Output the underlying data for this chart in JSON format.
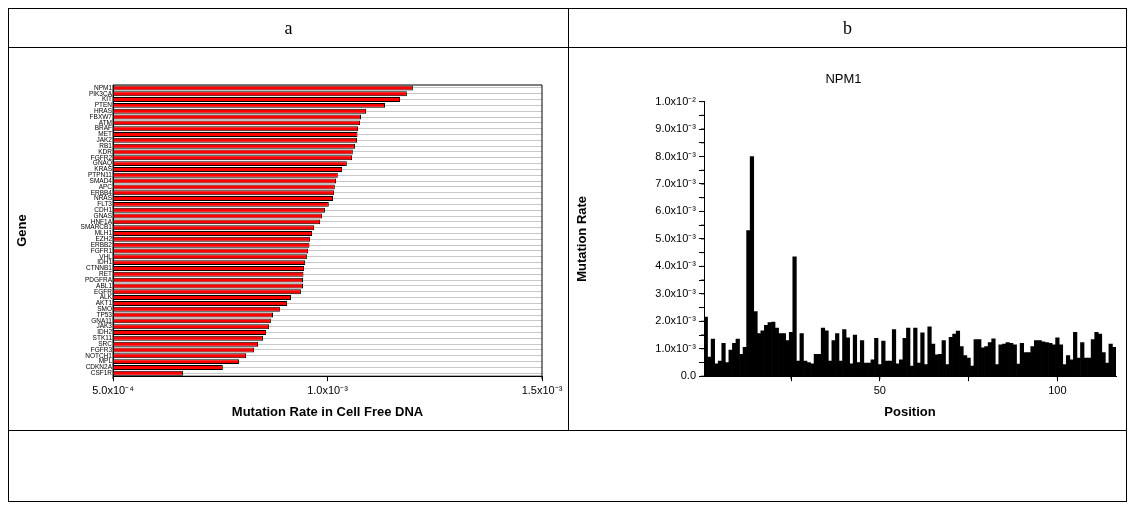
{
  "chart_data": [
    {
      "type": "bar",
      "orientation": "horizontal",
      "annotations": [
        "a"
      ],
      "xlabel": "Mutation Rate in Cell Free DNA",
      "ylabel": "Gene",
      "grid": "y",
      "color": "#ff0000",
      "categories": [
        "NPM1",
        "PIK3CA",
        "KIT",
        "PTEN",
        "HRAS",
        "FBXW7",
        "ATM",
        "BRAF",
        "MET",
        "JAK2",
        "RB1",
        "KDR",
        "FGFR2",
        "GNAQ",
        "KRAS",
        "PTPN11",
        "SMAD4",
        "APC",
        "ERBB4",
        "NRAS",
        "FLT3",
        "CDH1",
        "GNAS",
        "HNF1A",
        "SMARCB1",
        "MLH1",
        "EZH2",
        "ERBB2",
        "FGFR1",
        "VHL",
        "IDH1",
        "CTNNB1",
        "RET",
        "PDGFRA",
        "ABL1",
        "EGFR",
        "ALK",
        "AKT1",
        "SMO",
        "TP53",
        "GNA11",
        "JAK3",
        "IDH2",
        "STK11",
        "SRC",
        "FGFR3",
        "NOTCH1",
        "MPL",
        "CDKN2A",
        "CSF1R"
      ],
      "values": [
        0.001199,
        0.001185,
        0.001169,
        0.001134,
        0.00109,
        0.001078,
        0.001076,
        0.001071,
        0.00107,
        0.001069,
        0.001064,
        0.001059,
        0.001057,
        0.001045,
        0.001034,
        0.001024,
        0.00102,
        0.001017,
        0.001015,
        0.001013,
        0.001003,
        0.000994,
        0.000987,
        0.000983,
        0.000969,
        0.000964,
        0.000959,
        0.000958,
        0.000955,
        0.000952,
        0.000948,
        0.000945,
        0.000944,
        0.000943,
        0.000943,
        0.000938,
        0.000915,
        0.000906,
        0.000889,
        0.000873,
        0.000868,
        0.000864,
        0.000857,
        0.00085,
        0.000838,
        0.000829,
        0.00081,
        0.000794,
        0.000756,
        0.000663
      ],
      "xlim": [
        0.0005,
        0.0015
      ],
      "xticks": [
        {
          "value": 0.0005,
          "label": "5.0x10⁻⁴"
        },
        {
          "value": 0.001,
          "label": "1.0x10⁻³"
        },
        {
          "value": 0.0015,
          "label": "1.5x10⁻³"
        }
      ]
    },
    {
      "type": "bar",
      "annotations": [
        "b"
      ],
      "title": "NPM1",
      "xlabel": "Position",
      "ylabel": "Mutation Rate",
      "color": "#000000",
      "x": [
        1,
        2,
        3,
        4,
        5,
        6,
        7,
        8,
        9,
        10,
        11,
        12,
        13,
        14,
        15,
        16,
        17,
        18,
        19,
        20,
        21,
        22,
        23,
        24,
        25,
        26,
        27,
        28,
        29,
        30,
        31,
        32,
        33,
        34,
        35,
        36,
        37,
        38,
        39,
        40,
        41,
        42,
        43,
        44,
        45,
        46,
        47,
        48,
        49,
        50,
        51,
        52,
        53,
        54,
        55,
        56,
        57,
        58,
        59,
        60,
        61,
        62,
        63,
        64,
        65,
        66,
        67,
        68,
        69,
        70,
        71,
        72,
        73,
        74,
        75,
        76,
        77,
        78,
        79,
        80,
        81,
        82,
        83,
        84,
        85,
        86,
        87,
        88,
        89,
        90,
        91,
        92,
        93,
        94,
        95,
        96,
        97,
        98,
        99,
        100,
        101,
        102,
        103,
        104,
        105,
        106,
        107,
        108,
        109,
        110,
        111,
        112,
        113,
        114,
        115,
        116
      ],
      "values": [
        0.00215,
        0.0007,
        0.00135,
        0.00045,
        0.00055,
        0.0012,
        0.0005,
        0.00095,
        0.0012,
        0.00135,
        0.0008,
        0.00105,
        0.0053,
        0.008,
        0.00235,
        0.00155,
        0.00165,
        0.00185,
        0.00195,
        0.00197,
        0.00175,
        0.00155,
        0.00155,
        0.0013,
        0.0016,
        0.00435,
        0.00055,
        0.00155,
        0.00055,
        0.0005,
        0.00045,
        0.0008,
        0.0008,
        0.00175,
        0.00165,
        0.00055,
        0.0013,
        0.00155,
        0.00055,
        0.0017,
        0.0014,
        0.00045,
        0.0015,
        0.0005,
        0.0013,
        0.00048,
        0.00048,
        0.0006,
        0.00138,
        0.00042,
        0.00128,
        0.00055,
        0.00055,
        0.0017,
        0.00045,
        0.0006,
        0.00138,
        0.00175,
        0.00037,
        0.00175,
        0.00048,
        0.00158,
        0.00042,
        0.0018,
        0.00117,
        0.00078,
        0.0008,
        0.0013,
        0.00042,
        0.00142,
        0.00153,
        0.00164,
        0.00108,
        0.00075,
        0.00066,
        0.00037,
        0.00133,
        0.00133,
        0.00103,
        0.00108,
        0.00122,
        0.00136,
        0.00042,
        0.00114,
        0.00117,
        0.00122,
        0.0012,
        0.00114,
        0.00044,
        0.0012,
        0.00086,
        0.00086,
        0.00108,
        0.0013,
        0.0013,
        0.00125,
        0.00122,
        0.0012,
        0.00114,
        0.0014,
        0.00114,
        0.00042,
        0.00075,
        0.0006,
        0.0016,
        0.00066,
        0.00122,
        0.00066,
        0.00066,
        0.00133,
        0.0016,
        0.00153,
        0.00086,
        0.00048,
        0.00117,
        0.00105
      ],
      "xlim": [
        0.5,
        116.5
      ],
      "xticks": [
        {
          "value": 25,
          "label": null
        },
        50,
        {
          "value": 75,
          "label": null
        },
        100
      ],
      "ylim": [
        0,
        0.01
      ],
      "yticks": [
        {
          "value": 0,
          "label": "0.0"
        },
        {
          "value": 0.0005,
          "label": null
        },
        {
          "value": 0.001,
          "label": "1.0x10⁻³"
        },
        {
          "value": 0.0015,
          "label": null
        },
        {
          "value": 0.002,
          "label": "2.0x10⁻³"
        },
        {
          "value": 0.0025,
          "label": null
        },
        {
          "value": 0.003,
          "label": "3.0x10⁻³"
        },
        {
          "value": 0.0035,
          "label": null
        },
        {
          "value": 0.004,
          "label": "4.0x10⁻³"
        },
        {
          "value": 0.0045,
          "label": null
        },
        {
          "value": 0.005,
          "label": "5.0x10⁻³"
        },
        {
          "value": 0.0055,
          "label": null
        },
        {
          "value": 0.006,
          "label": "6.0x10⁻³"
        },
        {
          "value": 0.0065,
          "label": null
        },
        {
          "value": 0.007,
          "label": "7.0x10⁻³"
        },
        {
          "value": 0.0075,
          "label": null
        },
        {
          "value": 0.008,
          "label": "8.0x10⁻³"
        },
        {
          "value": 0.0085,
          "label": null
        },
        {
          "value": 0.009,
          "label": "9.0x10⁻³"
        },
        {
          "value": 0.0095,
          "label": null
        },
        {
          "value": 0.01,
          "label": "1.0x10⁻²"
        }
      ]
    }
  ]
}
